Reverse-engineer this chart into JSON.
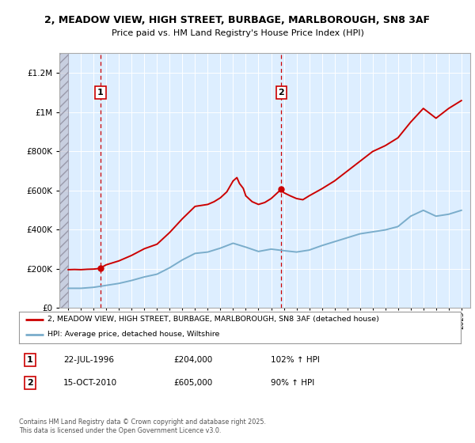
{
  "title": "2, MEADOW VIEW, HIGH STREET, BURBAGE, MARLBOROUGH, SN8 3AF",
  "subtitle": "Price paid vs. HM Land Registry's House Price Index (HPI)",
  "sale1_date": "22-JUL-1996",
  "sale1_price": 204000,
  "sale1_hpi_pct": "102% ↑ HPI",
  "sale1_year": 1996.54,
  "sale2_date": "15-OCT-2010",
  "sale2_price": 605000,
  "sale2_hpi_pct": "90% ↑ HPI",
  "sale2_year": 2010.79,
  "legend_line1": "2, MEADOW VIEW, HIGH STREET, BURBAGE, MARLBOROUGH, SN8 3AF (detached house)",
  "legend_line2": "HPI: Average price, detached house, Wiltshire",
  "footer": "Contains HM Land Registry data © Crown copyright and database right 2025.\nThis data is licensed under the Open Government Licence v3.0.",
  "line_color_red": "#cc0000",
  "line_color_blue": "#7aadcb",
  "bg_color": "#ddeeff",
  "hatch_color": "#bbbbcc",
  "plot_bg": "#ffffff",
  "ylim_max": 1300000,
  "xlim_start": 1993.3,
  "xlim_end": 2025.7,
  "years_hpi": [
    1994,
    1995,
    1996,
    1997,
    1998,
    1999,
    2000,
    2001,
    2002,
    2003,
    2004,
    2005,
    2006,
    2007,
    2008,
    2009,
    2010,
    2011,
    2012,
    2013,
    2014,
    2015,
    2016,
    2017,
    2018,
    2019,
    2020,
    2021,
    2022,
    2023,
    2024,
    2025
  ],
  "hpi_values": [
    100000,
    100000,
    105000,
    115000,
    125000,
    140000,
    158000,
    172000,
    205000,
    245000,
    278000,
    285000,
    305000,
    330000,
    310000,
    288000,
    300000,
    292000,
    285000,
    295000,
    318000,
    338000,
    358000,
    378000,
    388000,
    398000,
    415000,
    468000,
    498000,
    468000,
    478000,
    498000
  ],
  "years_red": [
    1994.0,
    1994.5,
    1995.0,
    1995.5,
    1996.0,
    1996.3,
    1996.54,
    1997,
    1998,
    1999,
    2000,
    2001,
    2002,
    2003,
    2004,
    2005,
    2005.5,
    2006,
    2006.5,
    2007,
    2007.3,
    2007.5,
    2007.8,
    2008,
    2008.5,
    2009,
    2009.5,
    2010,
    2010.79,
    2011,
    2011.5,
    2012,
    2012.5,
    2013,
    2014,
    2015,
    2016,
    2017,
    2018,
    2019,
    2020,
    2021,
    2022,
    2023,
    2024,
    2025
  ],
  "red_values": [
    195000,
    196000,
    195000,
    197000,
    198000,
    200000,
    204000,
    220000,
    240000,
    268000,
    302000,
    325000,
    385000,
    455000,
    518000,
    528000,
    542000,
    562000,
    592000,
    648000,
    665000,
    635000,
    610000,
    572000,
    542000,
    528000,
    538000,
    558000,
    605000,
    588000,
    572000,
    558000,
    552000,
    572000,
    608000,
    648000,
    698000,
    748000,
    798000,
    828000,
    868000,
    948000,
    1018000,
    968000,
    1018000,
    1058000
  ]
}
